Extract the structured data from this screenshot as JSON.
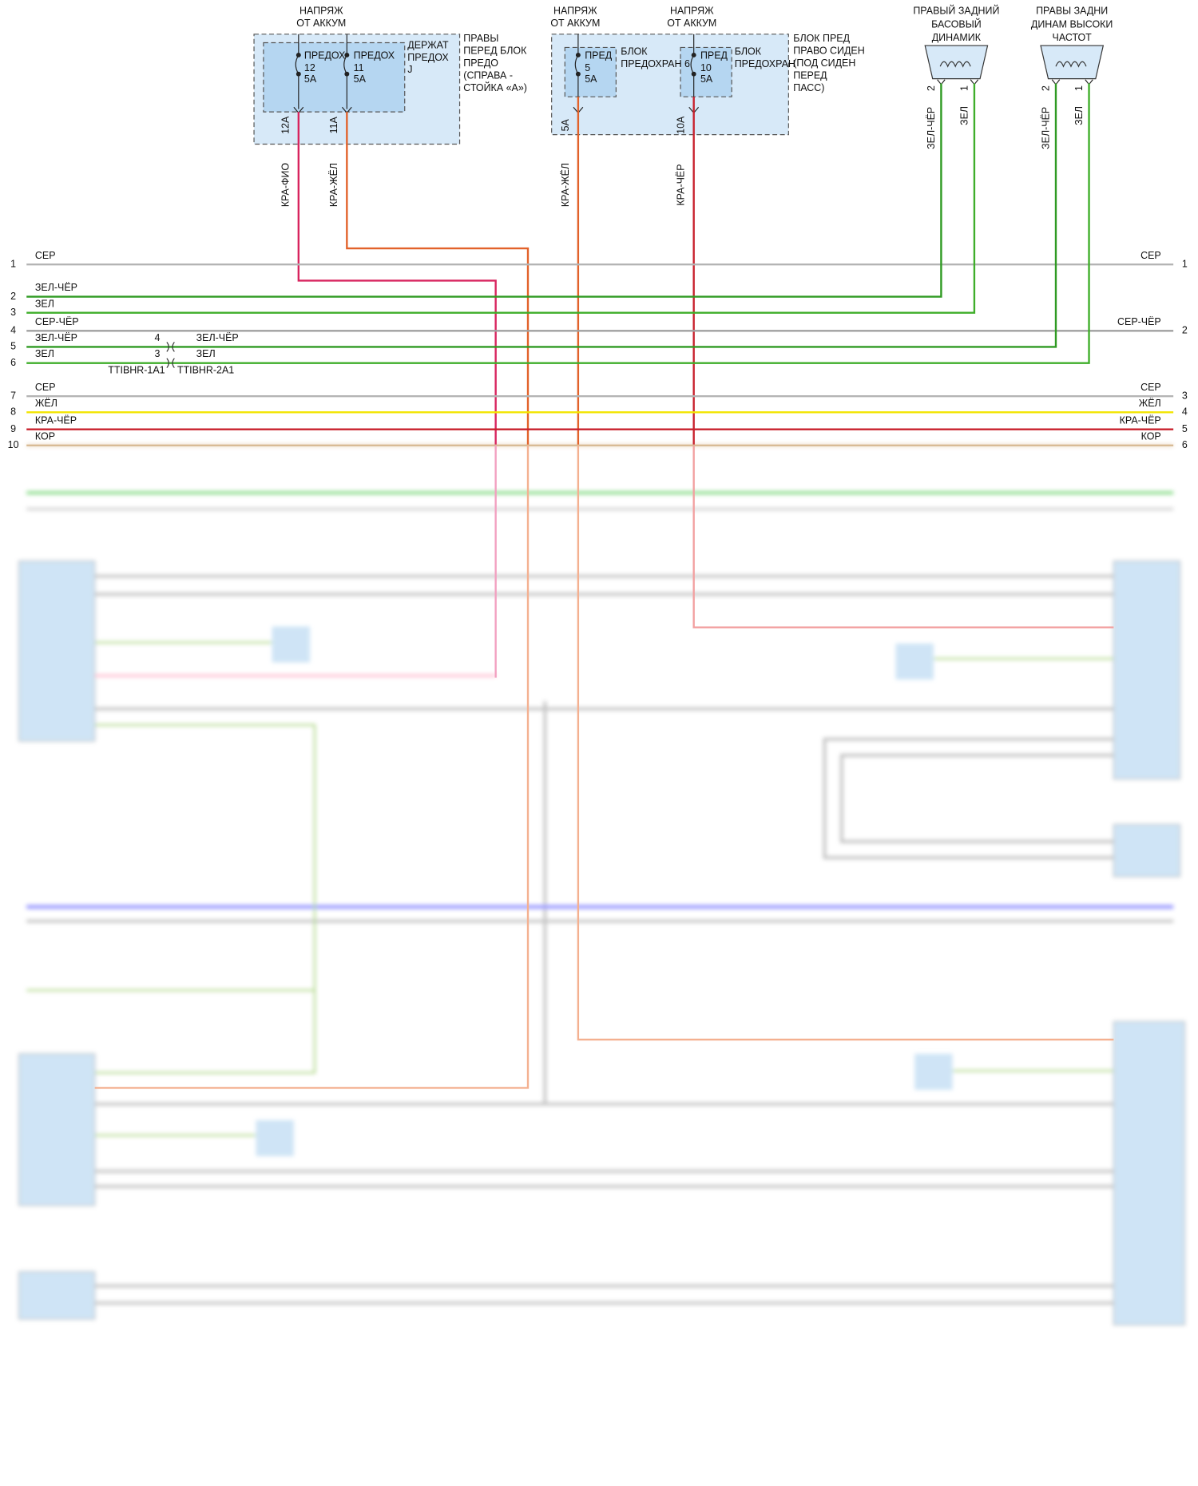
{
  "sources": [
    {
      "lines": [
        "НАПРЯЖ",
        "ОТ АККУМ"
      ]
    },
    {
      "lines": [
        "НАПРЯЖ",
        "ОТ АККУМ"
      ]
    },
    {
      "lines": [
        "НАПРЯЖ",
        "ОТ АККУМ"
      ]
    }
  ],
  "fuse_blocks": [
    {
      "lines": [
        "ПРАВЫ",
        "ПЕРЕД БЛОК",
        "ПРЕДО",
        "(СПРАВА -",
        "СТОЙКА «А»)"
      ],
      "holder": [
        "ДЕРЖАТ",
        "ПРЕДОХ",
        "J"
      ],
      "fuses": [
        {
          "name": "ПРЕДОХ",
          "number": "12",
          "rating": "5A",
          "pin": "12A",
          "wire": "КРА-ФИО"
        },
        {
          "name": "ПРЕДОХ",
          "number": "11",
          "rating": "5A",
          "pin": "11A",
          "wire": "КРА-ЖЁЛ"
        }
      ]
    },
    {
      "lines": [
        "БЛОК ПРЕД",
        "ПРАВО СИДЕН",
        "(ПОД СИДЕН",
        "ПЕРЕД",
        "ПАСС)"
      ],
      "fuses": [
        {
          "name": "ПРЕД",
          "number": "5",
          "rating": "5A",
          "pin": "5A",
          "wire": "КРА-ЖЁЛ",
          "holder": [
            "БЛОК",
            "ПРЕДОХРАН 6"
          ]
        },
        {
          "name": "ПРЕД",
          "number": "10",
          "rating": "5A",
          "pin": "10A",
          "wire": "КРА-ЧЁР",
          "holder": [
            "БЛОК",
            "ПРЕДОХРАН"
          ]
        }
      ]
    }
  ],
  "speakers": [
    {
      "lines": [
        "ПРАВЫЙ ЗАДНИЙ",
        "БАСОВЫЙ",
        "ДИНАМИК"
      ],
      "pins": [
        {
          "pin": "2",
          "wire": "ЗЕЛ-ЧЁР"
        },
        {
          "pin": "1",
          "wire": "ЗЕЛ"
        }
      ]
    },
    {
      "lines": [
        "ПРАВЫ ЗАДНИ",
        "ДИНАМ ВЫСОКИ",
        "ЧАСТОТ"
      ],
      "pins": [
        {
          "pin": "2",
          "wire": "ЗЕЛ-ЧЁР"
        },
        {
          "pin": "1",
          "wire": "ЗЕЛ"
        }
      ]
    }
  ],
  "bus": [
    {
      "pin": "1",
      "wire": "СЕР",
      "right_wire": "СЕР",
      "right_pin": "1"
    },
    {
      "pin": "2",
      "wire": "ЗЕЛ-ЧЁР"
    },
    {
      "pin": "3",
      "wire": "ЗЕЛ"
    },
    {
      "pin": "4",
      "wire": "СЕР-ЧЁР",
      "right_wire": "СЕР-ЧЁР",
      "right_pin": "2"
    },
    {
      "pin": "5",
      "wire": "ЗЕЛ-ЧЁР",
      "splice_pin": "4",
      "splice_wire": "ЗЕЛ-ЧЁР"
    },
    {
      "pin": "6",
      "wire": "ЗЕЛ",
      "splice_pin": "3",
      "splice_wire": "ЗЕЛ"
    },
    {
      "pin": "7",
      "wire": "СЕР",
      "right_wire": "СЕР",
      "right_pin": "3"
    },
    {
      "pin": "8",
      "wire": "ЖЁЛ",
      "right_wire": "ЖЁЛ",
      "right_pin": "4"
    },
    {
      "pin": "9",
      "wire": "КРА-ЧЁР",
      "right_wire": "КРА-ЧЁР",
      "right_pin": "5"
    },
    {
      "pin": "10",
      "wire": "КОР",
      "right_wire": "КОР",
      "right_pin": "6"
    }
  ],
  "connectors": [
    "TTIBHR-1A1",
    "TTIBHR-2A1"
  ]
}
